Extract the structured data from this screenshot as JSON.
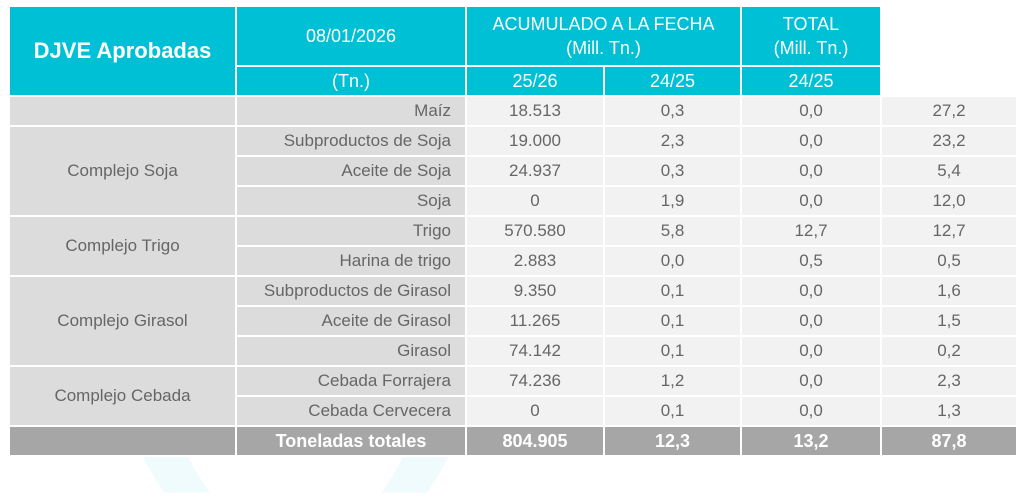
{
  "header": {
    "title": "DJVE Aprobadas",
    "date": "08/01/2026",
    "date_unit": "(Tn.)",
    "acum": "ACUMULADO A LA FECHA",
    "acum_unit": "(Mill. Tn.)",
    "total": "TOTAL",
    "total_unit": "(Mill. Tn.)",
    "c1": "25/26",
    "c2": "24/25",
    "c3": "24/25"
  },
  "rows": [
    {
      "group": "",
      "product": "Maíz",
      "tn": "18.513",
      "a": "0,3",
      "b": "0,0",
      "t": "27,2"
    },
    {
      "group": "Complejo Soja",
      "product": "Subproductos de Soja",
      "tn": "19.000",
      "a": "2,3",
      "b": "0,0",
      "t": "23,2"
    },
    {
      "product": "Aceite de Soja",
      "tn": "24.937",
      "a": "0,3",
      "b": "0,0",
      "t": "5,4"
    },
    {
      "product": "Soja",
      "tn": "0",
      "a": "1,9",
      "b": "0,0",
      "t": "12,0"
    },
    {
      "group": "Complejo Trigo",
      "product": "Trigo",
      "tn": "570.580",
      "a": "5,8",
      "b": "12,7",
      "t": "12,7"
    },
    {
      "product": "Harina de trigo",
      "tn": "2.883",
      "a": "0,0",
      "b": "0,5",
      "t": "0,5"
    },
    {
      "group": "Complejo Girasol",
      "product": "Subproductos de Girasol",
      "tn": "9.350",
      "a": "0,1",
      "b": "0,0",
      "t": "1,6"
    },
    {
      "product": "Aceite de Girasol",
      "tn": "11.265",
      "a": "0,1",
      "b": "0,0",
      "t": "1,5"
    },
    {
      "product": "Girasol",
      "tn": "74.142",
      "a": "0,1",
      "b": "0,0",
      "t": "0,2"
    },
    {
      "group": "Complejo Cebada",
      "product": "Cebada Forrajera",
      "tn": "74.236",
      "a": "1,2",
      "b": "0,0",
      "t": "2,3"
    },
    {
      "product": "Cebada Cervecera",
      "tn": "0",
      "a": "0,1",
      "b": "0,0",
      "t": "1,3"
    }
  ],
  "total": {
    "label": "Toneladas totales",
    "tn": "804.905",
    "a": "12,3",
    "b": "13,2",
    "t": "87,8"
  },
  "watermark": "cfyo"
}
